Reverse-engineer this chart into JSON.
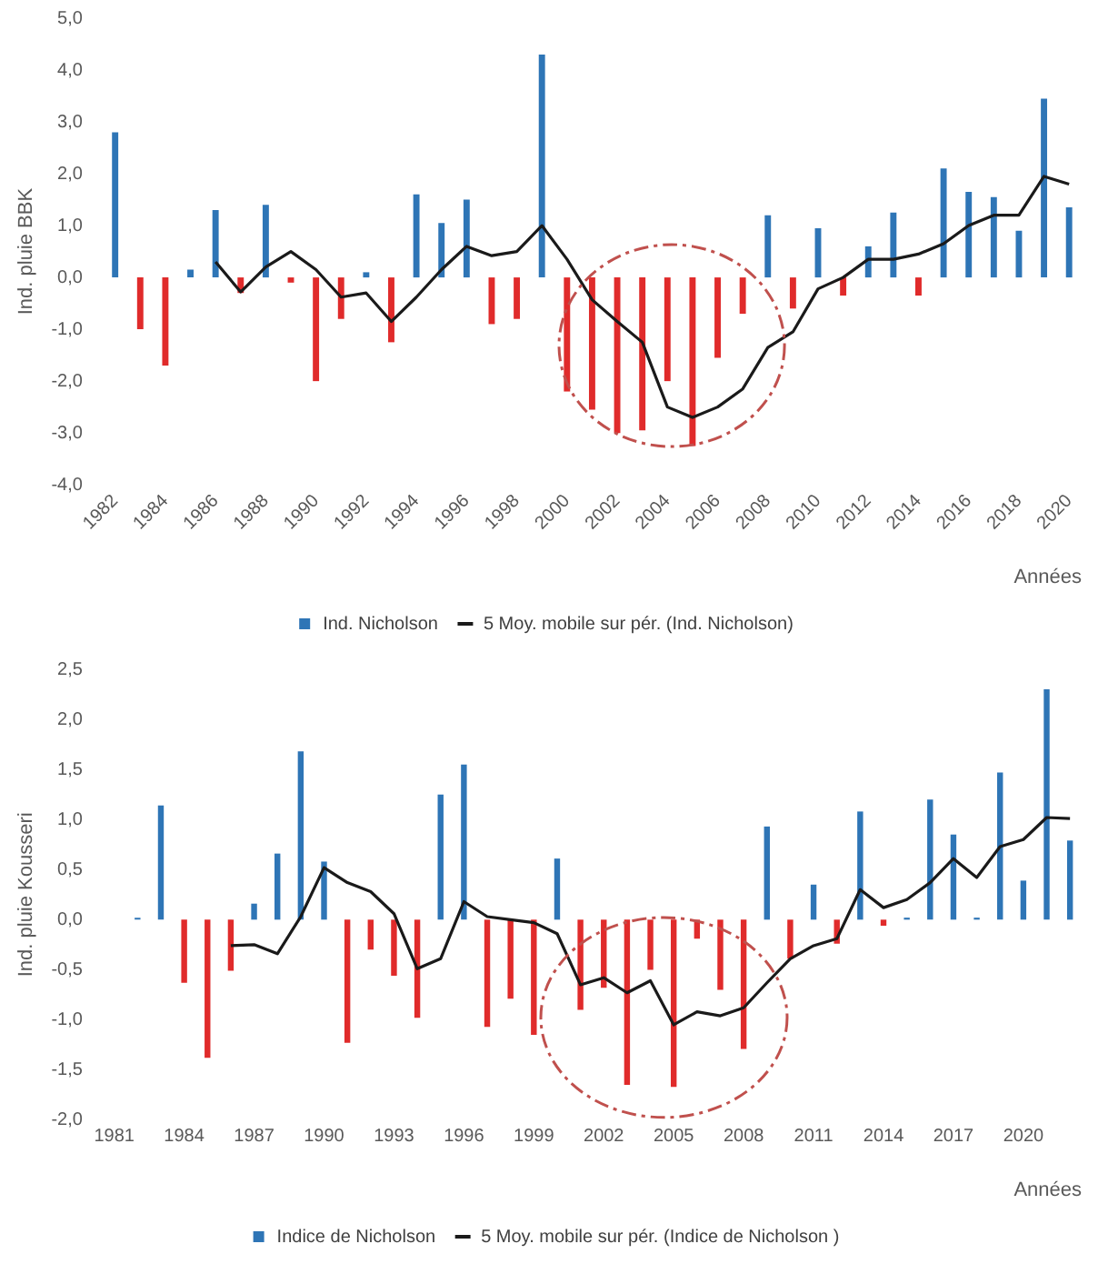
{
  "chart_data": [
    {
      "type": "bar",
      "ylabel": "Ind. pluie BBK",
      "xlabel": "Années",
      "categories": [
        "1982",
        null,
        "1984",
        null,
        "1986",
        null,
        "1988",
        null,
        "1990",
        null,
        "1992",
        null,
        "1994",
        null,
        "1996",
        null,
        "1998",
        null,
        "2000",
        null,
        "2002",
        null,
        "2004",
        null,
        "2006",
        null,
        "2008",
        null,
        "2010",
        null,
        "2012",
        null,
        "2014",
        null,
        "2016",
        null,
        "2018",
        null,
        "2020"
      ],
      "series": [
        {
          "name": "Ind. Nicholson",
          "type": "bar",
          "color": "#2e75b6",
          "values": [
            2.8,
            -1.0,
            -1.7,
            0.15,
            1.3,
            -0.3,
            1.4,
            -0.1,
            -2.0,
            -0.8,
            0.1,
            -1.25,
            1.6,
            1.05,
            1.5,
            -0.9,
            -0.8,
            4.3,
            -2.2,
            -2.55,
            -3.0,
            -2.95,
            -2.0,
            -3.25,
            -1.55,
            -0.7,
            1.2,
            -0.6,
            0.95,
            -0.35,
            0.6,
            1.25,
            -0.35,
            2.1,
            1.65,
            1.55,
            0.9,
            3.45,
            1.35
          ],
          "colors": [
            "#2e75b6",
            "#e02b2b",
            "#e02b2b",
            "#2e75b6",
            "#2e75b6",
            "#e02b2b",
            "#2e75b6",
            "#e02b2b",
            "#e02b2b",
            "#e02b2b",
            "#2e75b6",
            "#e02b2b",
            "#2e75b6",
            "#2e75b6",
            "#2e75b6",
            "#e02b2b",
            "#e02b2b",
            "#2e75b6",
            "#e02b2b",
            "#e02b2b",
            "#e02b2b",
            "#e02b2b",
            "#e02b2b",
            "#e02b2b",
            "#e02b2b",
            "#e02b2b",
            "#2e75b6",
            "#e02b2b",
            "#2e75b6",
            "#e02b2b",
            "#2e75b6",
            "#2e75b6",
            "#e02b2b",
            "#2e75b6",
            "#2e75b6",
            "#2e75b6",
            "#2e75b6",
            "#2e75b6",
            "#2e75b6"
          ]
        },
        {
          "name": "5 Moy. mobile sur pér. (Ind. Nicholson)",
          "type": "line",
          "color": "#1a1a1a",
          "values": [
            null,
            null,
            null,
            null,
            0.3,
            -0.28,
            0.2,
            0.5,
            0.15,
            -0.38,
            -0.3,
            -0.85,
            -0.38,
            0.15,
            0.6,
            0.42,
            0.5,
            1.0,
            0.35,
            -0.43,
            -0.85,
            -1.25,
            -2.5,
            -2.7,
            -2.5,
            -2.15,
            -1.35,
            -1.05,
            -0.22,
            0.0,
            0.35,
            0.35,
            0.45,
            0.65,
            1.0,
            1.2,
            1.2,
            1.95,
            1.8
          ]
        }
      ],
      "ylim": [
        -4,
        5
      ],
      "yticks": [
        {
          "value": -4,
          "label": "-4,0"
        },
        {
          "value": -3,
          "label": "-3,0"
        },
        {
          "value": -2,
          "label": "-2,0"
        },
        {
          "value": -1,
          "label": "-1,0"
        },
        {
          "value": 0,
          "label": "0,0"
        },
        {
          "value": 1,
          "label": "1,0"
        },
        {
          "value": 2,
          "label": "2,0"
        },
        {
          "value": 3,
          "label": "3,0"
        },
        {
          "value": 4,
          "label": "4,0"
        },
        {
          "value": 5,
          "label": "5,0"
        }
      ],
      "grid": false,
      "legend": "bottom",
      "marker": "none",
      "line_style": "solid"
    },
    {
      "type": "bar",
      "ylabel": "Ind. pluie Kousseri",
      "xlabel": "Années",
      "categories": [
        "1981",
        null,
        null,
        "1984",
        null,
        null,
        "1987",
        null,
        null,
        "1990",
        null,
        null,
        "1993",
        null,
        null,
        "1996",
        null,
        null,
        "1999",
        null,
        null,
        "2002",
        null,
        null,
        "2005",
        null,
        null,
        "2008",
        null,
        null,
        "2011",
        null,
        null,
        "2014",
        null,
        null,
        "2017",
        null,
        null,
        "2020",
        null,
        null
      ],
      "series": [
        {
          "name": "Indice de Nicholson",
          "type": "bar",
          "color": "#2e75b6",
          "values": [
            null,
            0.02,
            1.14,
            -0.63,
            -1.38,
            -0.51,
            0.16,
            0.66,
            1.68,
            0.58,
            -1.23,
            -0.3,
            -0.56,
            -0.98,
            1.25,
            1.55,
            -1.07,
            -0.79,
            -1.15,
            0.61,
            -0.9,
            -0.68,
            -1.65,
            -0.5,
            -1.67,
            -0.19,
            -0.7,
            -1.29,
            0.93,
            -0.39,
            0.35,
            -0.24,
            1.08,
            -0.06,
            0.02,
            1.2,
            0.85,
            0.02,
            1.47,
            0.39,
            2.3,
            0.79
          ],
          "colors": [
            "#2e75b6",
            "#2e75b6",
            "#2e75b6",
            "#e02b2b",
            "#e02b2b",
            "#e02b2b",
            "#2e75b6",
            "#2e75b6",
            "#2e75b6",
            "#2e75b6",
            "#e02b2b",
            "#e02b2b",
            "#e02b2b",
            "#e02b2b",
            "#2e75b6",
            "#2e75b6",
            "#e02b2b",
            "#e02b2b",
            "#e02b2b",
            "#2e75b6",
            "#e02b2b",
            "#e02b2b",
            "#e02b2b",
            "#e02b2b",
            "#e02b2b",
            "#e02b2b",
            "#e02b2b",
            "#e02b2b",
            "#2e75b6",
            "#e02b2b",
            "#2e75b6",
            "#e02b2b",
            "#2e75b6",
            "#e02b2b",
            "#2e75b6",
            "#2e75b6",
            "#2e75b6",
            "#2e75b6",
            "#2e75b6",
            "#2e75b6",
            "#2e75b6",
            "#2e75b6"
          ]
        },
        {
          "name": "5 Moy. mobile sur pér. (Indice de Nicholson )",
          "type": "line",
          "color": "#1a1a1a",
          "values": [
            null,
            null,
            null,
            null,
            null,
            -0.26,
            -0.25,
            -0.34,
            0.03,
            0.52,
            0.37,
            0.28,
            0.06,
            -0.49,
            -0.39,
            0.18,
            0.03,
            0.0,
            -0.03,
            -0.14,
            -0.65,
            -0.58,
            -0.73,
            -0.61,
            -1.05,
            -0.92,
            -0.96,
            -0.88,
            -0.63,
            -0.39,
            -0.26,
            -0.19,
            0.3,
            0.12,
            0.2,
            0.37,
            0.61,
            0.42,
            0.73,
            0.8,
            1.02,
            1.01
          ]
        }
      ],
      "ylim": [
        -2,
        2.5
      ],
      "yticks": [
        {
          "value": -2,
          "label": "-2,0"
        },
        {
          "value": -1.5,
          "label": "-1,5"
        },
        {
          "value": -1,
          "label": "-1,0"
        },
        {
          "value": -0.5,
          "label": "-0,5"
        },
        {
          "value": 0,
          "label": "0,0"
        },
        {
          "value": 0.5,
          "label": "0,5"
        },
        {
          "value": 1,
          "label": "1,0"
        },
        {
          "value": 1.5,
          "label": "1,5"
        },
        {
          "value": 2,
          "label": "2,0"
        },
        {
          "value": 2.5,
          "label": "2,5"
        }
      ],
      "grid": false,
      "legend": "bottom",
      "marker": "none",
      "line_style": "solid"
    }
  ]
}
